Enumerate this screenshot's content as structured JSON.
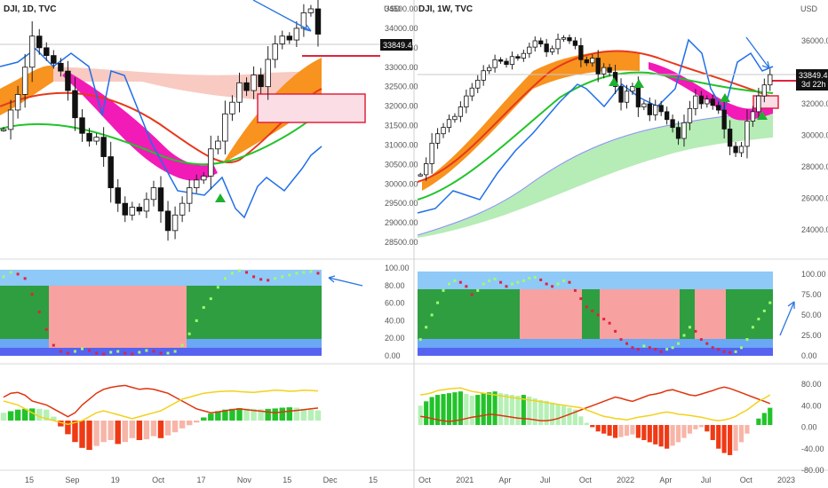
{
  "chart_data": [
    {
      "type": "line",
      "title": "DJI, 1D, TVC",
      "currency": "USD",
      "last_price": "33849.47",
      "ylim": [
        28500,
        34500
      ],
      "y_ticks": [
        "34500.00",
        "34000.00",
        "33500.00",
        "33000.00",
        "32500.00",
        "32000.00",
        "31500.00",
        "31000.00",
        "30500.00",
        "30000.00",
        "29500.00",
        "29000.00",
        "28500.00"
      ],
      "x_ticks": [
        "15",
        "Sep",
        "19",
        "Oct",
        "17",
        "Nov",
        "15",
        "Dec",
        "15"
      ],
      "series": [
        {
          "values": [
            31400,
            31900,
            32300,
            33000,
            33800,
            33500,
            33300,
            33100,
            32900,
            32400,
            31700,
            31300,
            31100,
            31200,
            30700,
            29900,
            29500,
            29200,
            29400,
            29300,
            29600,
            29900,
            29300,
            28800,
            29200,
            29500,
            29900,
            30100,
            30200,
            30900,
            31100,
            31800,
            32100,
            32600,
            32400,
            32800,
            32500,
            33200,
            33600,
            33800,
            33700,
            34000,
            34400,
            34500,
            33850
          ]
        }
      ],
      "oscillator": {
        "y_ticks": [
          "100.00",
          "80.00",
          "60.00",
          "40.00",
          "20.00",
          "0.00"
        ],
        "values": [
          90,
          95,
          93,
          88,
          70,
          50,
          30,
          12,
          5,
          3,
          5,
          8,
          6,
          3,
          2,
          4,
          5,
          3,
          2,
          4,
          6,
          5,
          3,
          3,
          5,
          12,
          25,
          40,
          55,
          65,
          78,
          88,
          94,
          97,
          95,
          90,
          87,
          86,
          88,
          90,
          92,
          94,
          95,
          96,
          94
        ]
      },
      "momentum": {
        "values": [
          20,
          24,
          28,
          30,
          31,
          30,
          28,
          10,
          -15,
          -35,
          -55,
          -70,
          -75,
          -65,
          -55,
          -50,
          -60,
          -55,
          -45,
          -50,
          -48,
          -40,
          -45,
          -38,
          -30,
          -20,
          -12,
          -5,
          8,
          18,
          24,
          28,
          30,
          32,
          31,
          30,
          29,
          30,
          31,
          33,
          34,
          33,
          30,
          28,
          26
        ],
        "line1": [
          60,
          70,
          72,
          65,
          50,
          45,
          40,
          30,
          20,
          10,
          20,
          40,
          55,
          70,
          80,
          85,
          88,
          90,
          85,
          80,
          82,
          80,
          75,
          70,
          60,
          50,
          40,
          30,
          25,
          20,
          22,
          25,
          28,
          30,
          28,
          26,
          24,
          22,
          20,
          22,
          24,
          26,
          28,
          30,
          32
        ],
        "line2": [
          50,
          45,
          40,
          30,
          20,
          10,
          5,
          0,
          -5,
          -10,
          -5,
          0,
          10,
          20,
          25,
          20,
          15,
          10,
          5,
          10,
          15,
          20,
          25,
          35,
          45,
          55,
          60,
          65,
          70,
          72,
          74,
          75,
          76,
          74,
          73,
          72,
          74,
          76,
          78,
          77,
          75,
          76,
          78,
          77,
          76
        ]
      }
    },
    {
      "type": "line",
      "title": "DJI, 1W, TVC",
      "currency": "USD",
      "last_price": "33849.47",
      "countdown": "3d 22h",
      "ylim": [
        24000,
        36000
      ],
      "y_ticks": [
        "36000.00",
        "34000.00",
        "32000.00",
        "30000.00",
        "28000.00",
        "26000.00",
        "24000.00"
      ],
      "x_ticks": [
        "Oct",
        "2021",
        "Apr",
        "Jul",
        "Oct",
        "2022",
        "Apr",
        "Jul",
        "Oct",
        "2023"
      ],
      "series": [
        {
          "values": [
            27500,
            28200,
            29500,
            30100,
            30500,
            31000,
            31200,
            31800,
            32500,
            33000,
            33500,
            34100,
            34300,
            34800,
            34700,
            34500,
            35000,
            34900,
            35200,
            35600,
            36000,
            35800,
            35300,
            35500,
            36100,
            36200,
            36000,
            35700,
            34800,
            34600,
            34900,
            33900,
            34300,
            34000,
            33100,
            32100,
            32800,
            33100,
            31800,
            32000,
            31300,
            31900,
            31500,
            31000,
            30500,
            29800,
            30800,
            31700,
            32500,
            32000,
            32300,
            31900,
            31600,
            30400,
            29300,
            28900,
            29300,
            30900,
            31500,
            32500,
            33200,
            33850
          ]
        }
      ],
      "oscillator": {
        "y_ticks": [
          "100.00",
          "75.00",
          "50.00",
          "25.00",
          "0.00"
        ],
        "values": [
          20,
          35,
          50,
          65,
          80,
          88,
          92,
          90,
          85,
          75,
          80,
          88,
          92,
          94,
          90,
          85,
          88,
          90,
          92,
          95,
          96,
          93,
          88,
          85,
          88,
          92,
          90,
          80,
          70,
          60,
          55,
          50,
          45,
          40,
          30,
          20,
          15,
          10,
          8,
          12,
          10,
          8,
          5,
          8,
          10,
          15,
          25,
          35,
          30,
          20,
          15,
          10,
          8,
          5,
          4,
          5,
          10,
          20,
          35,
          45,
          55,
          65
        ]
      },
      "momentum": {
        "y_ticks": [
          "80.00",
          "40.00",
          "0.00",
          "-40.00",
          "-80.00"
        ],
        "values": [
          45,
          55,
          65,
          70,
          72,
          74,
          76,
          78,
          72,
          68,
          70,
          74,
          76,
          78,
          74,
          72,
          70,
          68,
          70,
          66,
          62,
          58,
          56,
          52,
          48,
          44,
          40,
          36,
          20,
          5,
          -5,
          -15,
          -20,
          -25,
          -30,
          -28,
          -25,
          -22,
          -30,
          -35,
          -40,
          -45,
          -50,
          -55,
          -48,
          -40,
          -30,
          -20,
          -10,
          -5,
          -15,
          -35,
          -55,
          -65,
          -70,
          -60,
          -40,
          -20,
          0,
          15,
          28,
          40
        ],
        "line1": [
          20,
          18,
          15,
          12,
          10,
          8,
          10,
          12,
          15,
          18,
          20,
          22,
          25,
          24,
          22,
          20,
          18,
          16,
          15,
          14,
          12,
          10,
          10,
          12,
          15,
          20,
          25,
          30,
          35,
          40,
          45,
          50,
          55,
          60,
          65,
          62,
          58,
          55,
          60,
          65,
          70,
          72,
          75,
          80,
          82,
          78,
          74,
          70,
          68,
          72,
          76,
          80,
          85,
          88,
          85,
          80,
          75,
          70,
          65,
          60,
          55,
          50
        ],
        "line2": [
          70,
          72,
          75,
          80,
          82,
          84,
          85,
          86,
          82,
          78,
          76,
          74,
          72,
          70,
          68,
          66,
          64,
          62,
          60,
          58,
          56,
          54,
          52,
          50,
          48,
          46,
          44,
          42,
          40,
          35,
          30,
          25,
          20,
          18,
          15,
          14,
          12,
          15,
          18,
          20,
          22,
          25,
          28,
          30,
          28,
          25,
          24,
          22,
          20,
          18,
          15,
          12,
          10,
          12,
          15,
          20,
          28,
          35,
          45,
          55,
          62,
          70
        ]
      }
    }
  ]
}
